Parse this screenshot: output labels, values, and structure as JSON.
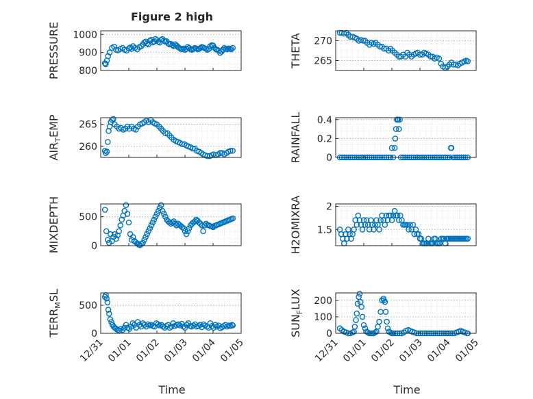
{
  "figure": {
    "title": "Figure 2 high",
    "x_axis_label": "Time",
    "x_tick_labels": [
      "12/31",
      "01/01",
      "01/02",
      "01/03",
      "01/04",
      "01/05"
    ],
    "marker_color": "#0072BD"
  },
  "chart_data": [
    {
      "type": "scatter",
      "name": "PRESSURE",
      "ylabel": "PRESSURE",
      "ylim": [
        800,
        1020
      ],
      "yticks": [
        800,
        900,
        1000
      ],
      "xlim": [
        0,
        5
      ],
      "grid": true,
      "x": [
        0.15,
        0.18,
        0.22,
        0.26,
        0.32,
        0.4,
        0.48,
        0.55,
        0.62,
        0.7,
        0.78,
        0.85,
        0.92,
        1.0,
        1.05,
        1.1,
        1.15,
        1.22,
        1.3,
        1.38,
        1.45,
        1.5,
        1.55,
        1.6,
        1.65,
        1.7,
        1.75,
        1.8,
        1.85,
        1.9,
        1.95,
        2.0,
        2.05,
        2.1,
        2.15,
        2.2,
        2.25,
        2.3,
        2.35,
        2.4,
        2.45,
        2.5,
        2.55,
        2.6,
        2.65,
        2.7,
        2.75,
        2.8,
        2.85,
        2.9,
        2.95,
        3.0,
        3.05,
        3.1,
        3.15,
        3.2,
        3.25,
        3.3,
        3.35,
        3.4,
        3.45,
        3.5,
        3.55,
        3.6,
        3.65,
        3.7,
        3.75,
        3.8,
        3.85,
        3.9,
        3.95,
        4.0,
        4.05,
        4.1,
        4.15,
        4.2,
        4.25,
        4.3,
        4.35,
        4.4,
        4.45,
        4.5,
        4.55,
        4.6,
        4.65,
        4.7
      ],
      "y": [
        840,
        835,
        855,
        880,
        900,
        925,
        932,
        915,
        912,
        920,
        925,
        915,
        910,
        922,
        928,
        920,
        935,
        925,
        918,
        930,
        935,
        945,
        955,
        960,
        950,
        945,
        965,
        970,
        955,
        960,
        975,
        968,
        960,
        955,
        970,
        975,
        965,
        960,
        962,
        950,
        945,
        948,
        940,
        935,
        945,
        938,
        930,
        925,
        920,
        918,
        922,
        915,
        920,
        930,
        925,
        918,
        915,
        920,
        925,
        922,
        918,
        920,
        925,
        930,
        928,
        924,
        920,
        915,
        920,
        935,
        940,
        938,
        925,
        918,
        915,
        910,
        898,
        905,
        915,
        925,
        920,
        918,
        922,
        920,
        918,
        925
      ]
    },
    {
      "type": "scatter",
      "name": "THETA",
      "ylabel": "THETA",
      "ylim": [
        262.5,
        272.5
      ],
      "yticks": [
        265,
        270
      ],
      "xlim": [
        0,
        5
      ],
      "grid": true,
      "x": [
        0.15,
        0.22,
        0.3,
        0.38,
        0.45,
        0.52,
        0.6,
        0.68,
        0.75,
        0.82,
        0.9,
        0.98,
        1.05,
        1.12,
        1.2,
        1.28,
        1.35,
        1.42,
        1.5,
        1.58,
        1.65,
        1.72,
        1.8,
        1.88,
        1.95,
        2.02,
        2.1,
        2.18,
        2.25,
        2.32,
        2.4,
        2.48,
        2.55,
        2.62,
        2.7,
        2.78,
        2.85,
        2.92,
        3.0,
        3.08,
        3.15,
        3.22,
        3.3,
        3.38,
        3.45,
        3.52,
        3.6,
        3.68,
        3.75,
        3.82,
        3.9,
        3.98,
        4.05,
        4.12,
        4.2,
        4.28,
        4.35,
        4.42,
        4.5,
        4.58,
        4.65,
        4.7
      ],
      "y": [
        272,
        272,
        271.8,
        272,
        271.5,
        271,
        271,
        270.8,
        270.5,
        270,
        270.2,
        270,
        270,
        269.5,
        269,
        269.5,
        269.2,
        269.5,
        269,
        268.5,
        268.5,
        268,
        268,
        267.5,
        268,
        267.5,
        267,
        266.5,
        266,
        266,
        266.5,
        266,
        267,
        266.5,
        266,
        266.5,
        266.8,
        267,
        266.5,
        266.5,
        267,
        266.8,
        266.5,
        266,
        266,
        265.5,
        265.8,
        265.5,
        264.2,
        263.5,
        263.2,
        263.5,
        264,
        264.5,
        264,
        264,
        263.8,
        264.2,
        264.5,
        264.8,
        265,
        264.8
      ]
    },
    {
      "type": "scatter",
      "name": "AIR_TEMP",
      "ylabel": "AIR_TEMP",
      "ylim": [
        257.5,
        266.5
      ],
      "yticks": [
        260,
        265
      ],
      "xlim": [
        0,
        5
      ],
      "grid": true,
      "x": [
        0.15,
        0.18,
        0.22,
        0.25,
        0.28,
        0.32,
        0.36,
        0.4,
        0.45,
        0.5,
        0.58,
        0.65,
        0.72,
        0.8,
        0.88,
        0.95,
        1.02,
        1.1,
        1.18,
        1.25,
        1.32,
        1.4,
        1.48,
        1.55,
        1.62,
        1.7,
        1.78,
        1.85,
        1.92,
        2.0,
        2.08,
        2.15,
        2.22,
        2.3,
        2.38,
        2.45,
        2.52,
        2.6,
        2.68,
        2.75,
        2.82,
        2.9,
        2.98,
        3.05,
        3.12,
        3.2,
        3.28,
        3.35,
        3.42,
        3.5,
        3.58,
        3.65,
        3.72,
        3.8,
        3.88,
        3.95,
        4.02,
        4.1,
        4.18,
        4.25,
        4.32,
        4.4,
        4.48,
        4.55,
        4.62,
        4.7
      ],
      "y": [
        259,
        258.5,
        258.8,
        261,
        263.5,
        264.5,
        265.5,
        266,
        266.2,
        265,
        264.5,
        264,
        264.2,
        263.8,
        264,
        264.5,
        264,
        264.5,
        264,
        263.8,
        264.5,
        265,
        265.2,
        265.5,
        265.8,
        265.5,
        266,
        265.5,
        265.2,
        265,
        264.5,
        264,
        263.5,
        263,
        263,
        262.5,
        262,
        261.5,
        261.2,
        261,
        260.8,
        260.5,
        260.5,
        260.2,
        260,
        259.8,
        259.5,
        259.5,
        259,
        258.8,
        258.5,
        258.2,
        258,
        257.8,
        257.8,
        258,
        258.2,
        258,
        258.2,
        258.5,
        258.5,
        258.2,
        258.5,
        258.8,
        259,
        259
      ]
    },
    {
      "type": "scatter",
      "name": "RAINFALL",
      "ylabel": "RAINFALL",
      "ylim": [
        0,
        0.42
      ],
      "yticks": [
        0,
        0.2,
        0.4
      ],
      "xlim": [
        0,
        5
      ],
      "grid": true,
      "x": [
        0.15,
        0.22,
        0.3,
        0.38,
        0.45,
        0.52,
        0.6,
        0.68,
        0.75,
        0.82,
        0.9,
        0.98,
        1.05,
        1.12,
        1.2,
        1.28,
        1.35,
        1.42,
        1.5,
        1.58,
        1.65,
        1.72,
        1.8,
        1.88,
        1.95,
        2.0,
        2.05,
        2.1,
        2.12,
        2.15,
        2.18,
        2.2,
        2.22,
        2.25,
        2.28,
        2.32,
        2.4,
        2.48,
        2.55,
        2.62,
        2.7,
        2.78,
        2.85,
        2.92,
        3.0,
        3.08,
        3.15,
        3.22,
        3.3,
        3.38,
        3.45,
        3.52,
        3.6,
        3.68,
        3.75,
        3.82,
        3.9,
        3.98,
        4.05,
        4.1,
        4.12,
        4.18,
        4.25,
        4.32,
        4.4,
        4.48,
        4.55,
        4.62,
        4.7
      ],
      "y": [
        0,
        0,
        0,
        0,
        0,
        0,
        0,
        0,
        0,
        0,
        0,
        0,
        0,
        0,
        0,
        0,
        0,
        0,
        0,
        0,
        0,
        0,
        0,
        0,
        0,
        0.1,
        0,
        0.1,
        0.2,
        0.3,
        0.4,
        0.4,
        0.4,
        0.3,
        0.4,
        0,
        0,
        0,
        0,
        0,
        0,
        0,
        0,
        0,
        0,
        0,
        0,
        0,
        0,
        0,
        0,
        0,
        0,
        0,
        0,
        0,
        0,
        0,
        0,
        0.1,
        0.1,
        0,
        0,
        0,
        0,
        0,
        0,
        0,
        0
      ]
    },
    {
      "type": "scatter",
      "name": "MIXDEPTH",
      "ylabel": "MIXDEPTH",
      "ylim": [
        0,
        720
      ],
      "yticks": [
        0,
        500
      ],
      "xlim": [
        0,
        5
      ],
      "grid": true,
      "x": [
        0.15,
        0.2,
        0.25,
        0.3,
        0.35,
        0.4,
        0.45,
        0.5,
        0.55,
        0.6,
        0.65,
        0.7,
        0.75,
        0.8,
        0.85,
        0.9,
        0.95,
        1.0,
        1.05,
        1.1,
        1.15,
        1.2,
        1.25,
        1.3,
        1.35,
        1.4,
        1.45,
        1.5,
        1.55,
        1.6,
        1.65,
        1.7,
        1.75,
        1.8,
        1.85,
        1.9,
        1.95,
        2.0,
        2.05,
        2.1,
        2.15,
        2.2,
        2.25,
        2.3,
        2.35,
        2.4,
        2.45,
        2.5,
        2.55,
        2.6,
        2.65,
        2.7,
        2.75,
        2.8,
        2.85,
        2.9,
        2.95,
        3.0,
        3.05,
        3.1,
        3.15,
        3.2,
        3.25,
        3.3,
        3.35,
        3.4,
        3.45,
        3.5,
        3.55,
        3.6,
        3.65,
        3.7,
        3.75,
        3.8,
        3.85,
        3.9,
        3.95,
        4.0,
        4.05,
        4.1,
        4.15,
        4.2,
        4.25,
        4.3,
        4.35,
        4.4,
        4.45,
        4.5,
        4.55,
        4.6,
        4.65,
        4.7
      ],
      "y": [
        620,
        250,
        100,
        50,
        200,
        80,
        150,
        200,
        120,
        180,
        250,
        350,
        450,
        520,
        600,
        700,
        550,
        400,
        200,
        100,
        150,
        80,
        60,
        40,
        20,
        10,
        30,
        50,
        100,
        150,
        200,
        250,
        300,
        350,
        400,
        450,
        500,
        550,
        600,
        650,
        700,
        600,
        550,
        500,
        450,
        420,
        400,
        380,
        400,
        420,
        380,
        350,
        380,
        360,
        340,
        320,
        300,
        250,
        200,
        250,
        300,
        350,
        380,
        400,
        420,
        450,
        430,
        400,
        380,
        350,
        250,
        350,
        380,
        360,
        350,
        340,
        330,
        320,
        340,
        350,
        360,
        370,
        380,
        390,
        400,
        410,
        420,
        430,
        440,
        450,
        460,
        470
      ]
    },
    {
      "type": "scatter",
      "name": "H2OMIXRA",
      "ylabel": "H2OMIXRA",
      "ylim": [
        1.15,
        2.05
      ],
      "yticks": [
        1.5,
        2
      ],
      "xlim": [
        0,
        5
      ],
      "grid": true,
      "x": [
        0.15,
        0.2,
        0.25,
        0.3,
        0.35,
        0.4,
        0.45,
        0.5,
        0.55,
        0.6,
        0.65,
        0.7,
        0.75,
        0.8,
        0.85,
        0.9,
        0.95,
        1.0,
        1.05,
        1.1,
        1.15,
        1.2,
        1.25,
        1.3,
        1.35,
        1.4,
        1.45,
        1.5,
        1.55,
        1.6,
        1.65,
        1.7,
        1.75,
        1.8,
        1.85,
        1.9,
        1.95,
        2.0,
        2.05,
        2.1,
        2.15,
        2.2,
        2.25,
        2.3,
        2.35,
        2.4,
        2.45,
        2.5,
        2.55,
        2.6,
        2.65,
        2.7,
        2.75,
        2.8,
        2.85,
        2.9,
        2.95,
        3.0,
        3.05,
        3.1,
        3.15,
        3.2,
        3.25,
        3.3,
        3.35,
        3.4,
        3.45,
        3.5,
        3.55,
        3.6,
        3.65,
        3.7,
        3.75,
        3.8,
        3.85,
        3.9,
        3.95,
        4.0,
        4.05,
        4.1,
        4.15,
        4.2,
        4.25,
        4.3,
        4.35,
        4.4,
        4.45,
        4.5,
        4.55,
        4.6,
        4.65,
        4.7
      ],
      "y": [
        1.5,
        1.4,
        1.3,
        1.2,
        1.4,
        1.3,
        1.5,
        1.4,
        1.3,
        1.4,
        1.5,
        1.7,
        1.6,
        1.8,
        1.7,
        1.6,
        1.5,
        1.7,
        1.6,
        1.7,
        1.6,
        1.5,
        1.7,
        1.6,
        1.5,
        1.6,
        1.7,
        1.6,
        1.5,
        1.7,
        1.8,
        1.7,
        1.6,
        1.8,
        1.7,
        1.8,
        1.8,
        1.7,
        1.8,
        1.9,
        1.8,
        1.8,
        1.7,
        1.8,
        1.7,
        1.6,
        1.6,
        1.6,
        1.6,
        1.5,
        1.6,
        1.5,
        1.6,
        1.4,
        1.5,
        1.4,
        1.4,
        1.3,
        1.3,
        1.2,
        1.2,
        1.2,
        1.2,
        1.3,
        1.2,
        1.2,
        1.2,
        1.3,
        1.3,
        1.2,
        1.2,
        1.2,
        1.3,
        1.3,
        1.3,
        1.2,
        1.3,
        1.3,
        1.3,
        1.3,
        1.3,
        1.3,
        1.3,
        1.3,
        1.3,
        1.3,
        1.3,
        1.3,
        1.3,
        1.3,
        1.3,
        1.3
      ]
    },
    {
      "type": "scatter",
      "name": "TERR_MSL",
      "ylabel": "TERR_MSL",
      "ylim": [
        0,
        720
      ],
      "yticks": [
        0,
        500
      ],
      "xlim": [
        0,
        5
      ],
      "grid": true,
      "x": [
        0.15,
        0.18,
        0.21,
        0.24,
        0.27,
        0.3,
        0.34,
        0.38,
        0.42,
        0.46,
        0.5,
        0.55,
        0.6,
        0.66,
        0.72,
        0.78,
        0.84,
        0.9,
        0.96,
        1.02,
        1.08,
        1.14,
        1.2,
        1.26,
        1.32,
        1.38,
        1.44,
        1.5,
        1.56,
        1.62,
        1.68,
        1.74,
        1.8,
        1.86,
        1.92,
        1.98,
        2.04,
        2.1,
        2.16,
        2.22,
        2.28,
        2.34,
        2.4,
        2.46,
        2.52,
        2.58,
        2.64,
        2.7,
        2.76,
        2.82,
        2.88,
        2.94,
        3.0,
        3.06,
        3.12,
        3.18,
        3.24,
        3.3,
        3.36,
        3.42,
        3.48,
        3.54,
        3.6,
        3.66,
        3.72,
        3.78,
        3.84,
        3.9,
        3.96,
        4.02,
        4.08,
        4.14,
        4.2,
        4.26,
        4.32,
        4.38,
        4.44,
        4.5,
        4.56,
        4.62,
        4.68,
        4.7
      ],
      "y": [
        650,
        680,
        620,
        550,
        420,
        350,
        250,
        200,
        150,
        120,
        100,
        80,
        60,
        50,
        80,
        60,
        100,
        150,
        100,
        80,
        120,
        180,
        150,
        100,
        200,
        150,
        120,
        180,
        150,
        120,
        160,
        140,
        150,
        130,
        120,
        180,
        160,
        140,
        150,
        120,
        100,
        130,
        150,
        100,
        120,
        180,
        130,
        150,
        160,
        140,
        170,
        120,
        100,
        150,
        180,
        130,
        120,
        140,
        160,
        120,
        130,
        150,
        110,
        160,
        140,
        120,
        100,
        180,
        130,
        100,
        150,
        120,
        140,
        90,
        110,
        130,
        150,
        120,
        140,
        130,
        150,
        140
      ]
    },
    {
      "type": "scatter",
      "name": "SUN_FLUX",
      "ylabel": "SUN_FLUX",
      "ylim": [
        0,
        245
      ],
      "yticks": [
        0,
        100,
        200
      ],
      "xlim": [
        0,
        5
      ],
      "grid": true,
      "x": [
        0.15,
        0.22,
        0.3,
        0.38,
        0.45,
        0.52,
        0.6,
        0.65,
        0.68,
        0.72,
        0.75,
        0.78,
        0.82,
        0.85,
        0.88,
        0.92,
        0.95,
        1.0,
        1.05,
        1.1,
        1.15,
        1.2,
        1.25,
        1.3,
        1.35,
        1.4,
        1.45,
        1.5,
        1.55,
        1.6,
        1.65,
        1.7,
        1.72,
        1.75,
        1.78,
        1.82,
        1.85,
        1.9,
        1.95,
        2.0,
        2.05,
        2.12,
        2.2,
        2.28,
        2.35,
        2.42,
        2.5,
        2.58,
        2.65,
        2.72,
        2.8,
        2.88,
        2.95,
        3.02,
        3.1,
        3.18,
        3.25,
        3.32,
        3.4,
        3.48,
        3.55,
        3.62,
        3.7,
        3.78,
        3.85,
        3.92,
        4.0,
        4.08,
        4.15,
        4.22,
        4.3,
        4.38,
        4.45,
        4.52,
        4.6,
        4.68,
        4.7
      ],
      "y": [
        30,
        20,
        10,
        5,
        0,
        0,
        5,
        10,
        40,
        80,
        120,
        180,
        220,
        240,
        190,
        160,
        100,
        50,
        30,
        10,
        5,
        0,
        0,
        0,
        0,
        5,
        10,
        40,
        70,
        130,
        200,
        210,
        200,
        190,
        130,
        70,
        30,
        10,
        5,
        0,
        0,
        0,
        0,
        0,
        0,
        5,
        15,
        20,
        15,
        10,
        5,
        0,
        0,
        0,
        0,
        0,
        0,
        0,
        0,
        0,
        0,
        0,
        0,
        0,
        0,
        0,
        0,
        0,
        0,
        0,
        5,
        10,
        15,
        10,
        5,
        0,
        0
      ]
    }
  ]
}
